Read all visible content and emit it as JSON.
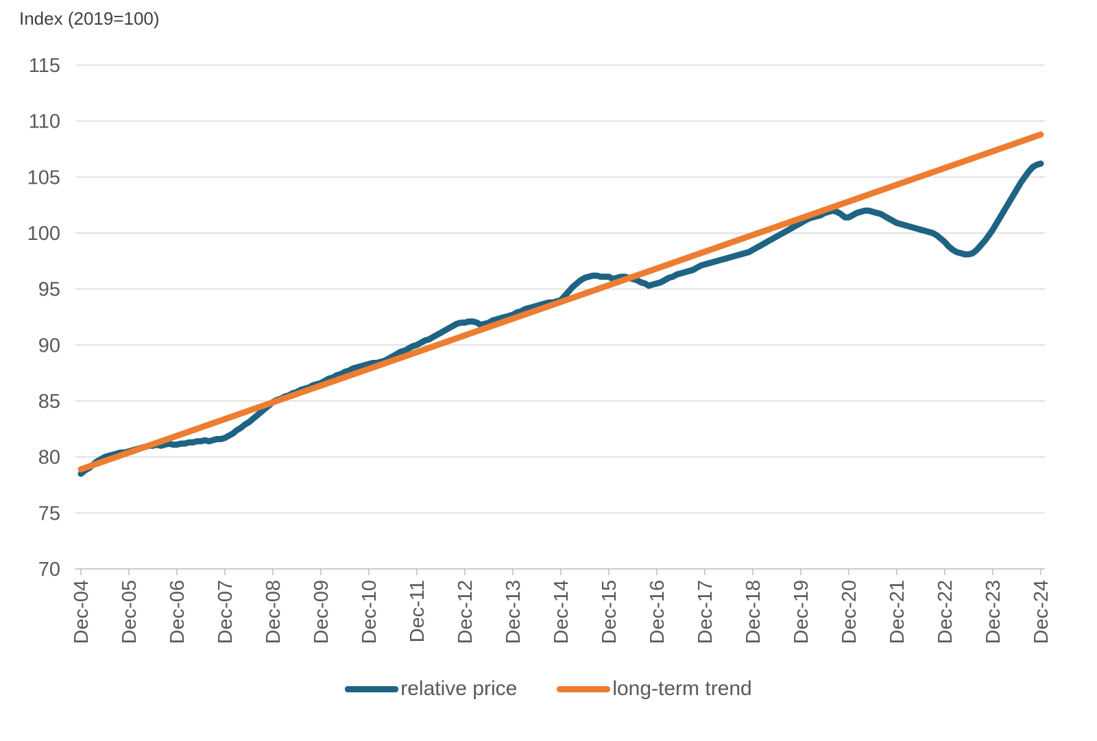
{
  "title": "Index (2019=100)",
  "legend": {
    "items": [
      {
        "label": "relative price",
        "color": "#1e6383"
      },
      {
        "label": "long-term trend",
        "color": "#ED7D31"
      }
    ],
    "position": "bottom"
  },
  "axis_colors": {
    "gridline": "#d9d9d9",
    "axis_line": "#bfbfbf",
    "tick": "#bfbfbf",
    "label_text": "#595959"
  },
  "chart_data": {
    "type": "line",
    "title": "Index (2019=100)",
    "ylabel": "",
    "xlabel": "",
    "ylim": [
      70,
      115
    ],
    "ytick_step": 5,
    "y_tick_labels": [
      "70",
      "75",
      "80",
      "85",
      "90",
      "95",
      "100",
      "105",
      "110",
      "115"
    ],
    "x_tick_labels": [
      "Dec-04",
      "Dec-05",
      "Dec-06",
      "Dec-07",
      "Dec-08",
      "Dec-09",
      "Dec-10",
      "Dec-11",
      "Dec-12",
      "Dec-13",
      "Dec-14",
      "Dec-15",
      "Dec-16",
      "Dec-17",
      "Dec-18",
      "Dec-19",
      "Dec-20",
      "Dec-21",
      "Dec-22",
      "Dec-23",
      "Dec-24"
    ],
    "x_unit": "monthly points from Dec-04 to Dec-24, ticks every December",
    "grid": "horizontal",
    "legend_position": "bottom",
    "series": [
      {
        "name": "relative price",
        "color": "#1e6383",
        "values": [
          78.5,
          78.8,
          79.0,
          79.3,
          79.6,
          79.8,
          80.0,
          80.1,
          80.2,
          80.3,
          80.4,
          80.4,
          80.5,
          80.6,
          80.7,
          80.8,
          80.9,
          81.0,
          81.0,
          81.1,
          81.0,
          81.1,
          81.2,
          81.1,
          81.1,
          81.2,
          81.2,
          81.3,
          81.3,
          81.4,
          81.4,
          81.5,
          81.4,
          81.5,
          81.6,
          81.6,
          81.7,
          81.9,
          82.1,
          82.4,
          82.6,
          82.9,
          83.1,
          83.4,
          83.7,
          84.0,
          84.3,
          84.6,
          84.9,
          85.1,
          85.2,
          85.4,
          85.5,
          85.7,
          85.8,
          86.0,
          86.1,
          86.2,
          86.4,
          86.5,
          86.6,
          86.8,
          87.0,
          87.1,
          87.3,
          87.4,
          87.6,
          87.7,
          87.9,
          88.0,
          88.1,
          88.2,
          88.3,
          88.4,
          88.4,
          88.5,
          88.6,
          88.8,
          89.0,
          89.2,
          89.4,
          89.5,
          89.7,
          89.9,
          90.0,
          90.2,
          90.4,
          90.5,
          90.7,
          90.9,
          91.1,
          91.3,
          91.5,
          91.7,
          91.9,
          92.0,
          92.0,
          92.1,
          92.1,
          92.0,
          91.8,
          91.9,
          92.0,
          92.2,
          92.3,
          92.4,
          92.5,
          92.6,
          92.7,
          92.9,
          93.0,
          93.2,
          93.3,
          93.4,
          93.5,
          93.6,
          93.7,
          93.8,
          93.8,
          93.9,
          94.0,
          94.4,
          94.8,
          95.2,
          95.5,
          95.8,
          96.0,
          96.1,
          96.2,
          96.2,
          96.1,
          96.1,
          96.1,
          95.9,
          96.0,
          96.1,
          96.1,
          96.0,
          95.9,
          95.8,
          95.6,
          95.5,
          95.3,
          95.4,
          95.5,
          95.6,
          95.8,
          96.0,
          96.1,
          96.3,
          96.4,
          96.5,
          96.6,
          96.7,
          96.9,
          97.1,
          97.2,
          97.3,
          97.4,
          97.5,
          97.6,
          97.7,
          97.8,
          97.9,
          98.0,
          98.1,
          98.2,
          98.3,
          98.5,
          98.7,
          98.9,
          99.1,
          99.3,
          99.5,
          99.7,
          99.9,
          100.1,
          100.3,
          100.5,
          100.7,
          100.9,
          101.1,
          101.3,
          101.4,
          101.5,
          101.6,
          101.8,
          101.9,
          102.0,
          101.9,
          101.7,
          101.4,
          101.4,
          101.6,
          101.8,
          101.9,
          102.0,
          102.0,
          101.9,
          101.8,
          101.7,
          101.5,
          101.3,
          101.1,
          100.9,
          100.8,
          100.7,
          100.6,
          100.5,
          100.4,
          100.3,
          100.2,
          100.1,
          100.0,
          99.8,
          99.5,
          99.2,
          98.8,
          98.5,
          98.3,
          98.2,
          98.1,
          98.1,
          98.2,
          98.5,
          98.9,
          99.3,
          99.8,
          100.3,
          100.9,
          101.5,
          102.1,
          102.7,
          103.3,
          103.9,
          104.5,
          105.0,
          105.5,
          105.9,
          106.1,
          106.2
        ]
      },
      {
        "name": "long-term trend",
        "color": "#ED7D31",
        "shape": "linear",
        "trend_start": 78.9,
        "trend_end": 108.8
      }
    ]
  }
}
